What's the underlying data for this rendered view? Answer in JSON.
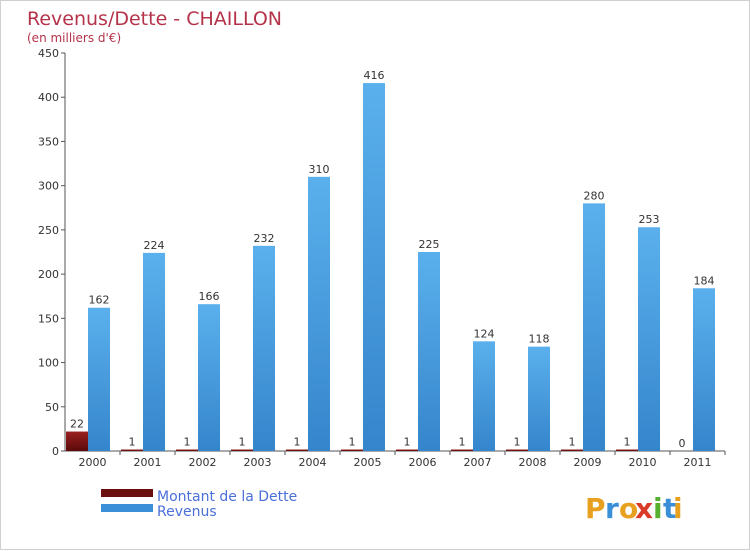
{
  "chart_data": {
    "type": "bar",
    "title": "Revenus/Dette - CHAILLON",
    "subtitle": "(en milliers d'€)",
    "categories": [
      "2000",
      "2001",
      "2002",
      "2003",
      "2004",
      "2005",
      "2006",
      "2007",
      "2008",
      "2009",
      "2010",
      "2011"
    ],
    "series": [
      {
        "name": "Montant de la Dette",
        "values": [
          22,
          1,
          1,
          1,
          1,
          1,
          1,
          1,
          1,
          1,
          1,
          0
        ],
        "color": "#7a1414"
      },
      {
        "name": "Revenus",
        "values": [
          162,
          224,
          166,
          232,
          310,
          416,
          225,
          124,
          118,
          280,
          253,
          184
        ],
        "color": "#4a9be0"
      }
    ],
    "ylim": [
      0,
      450
    ],
    "yticks": [
      0,
      50,
      100,
      150,
      200,
      250,
      300,
      350,
      400,
      450
    ],
    "grid": false,
    "legend": "bottom-left"
  },
  "logo": {
    "letters": [
      "P",
      "r",
      "o",
      "x",
      "i",
      "t",
      "i"
    ],
    "colors": [
      "#e8a020",
      "#3a8fd8",
      "#e8a020",
      "#d93a2a",
      "#56b030",
      "#3a8fd8",
      "#e8a020"
    ]
  }
}
